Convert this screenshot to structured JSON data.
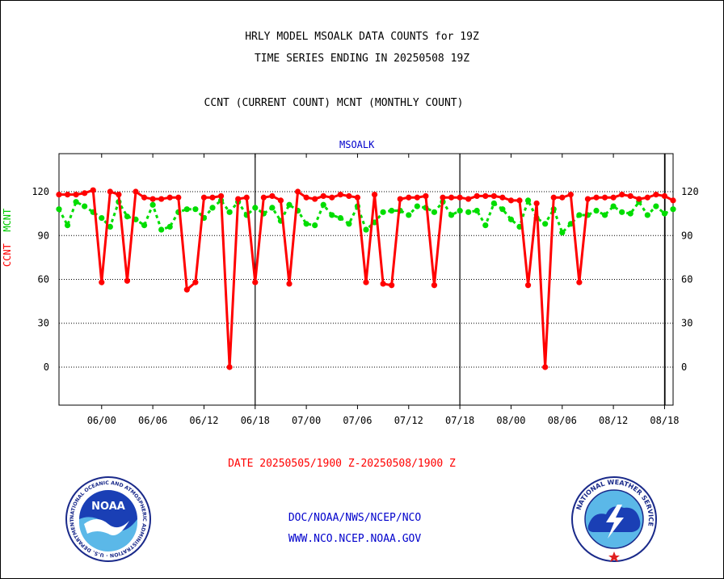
{
  "header": {
    "title_line1": "HRLY MODEL MSOALK DATA COUNTS for 19Z",
    "title_line2": "TIME SERIES ENDING IN 20250508 19Z",
    "title_line3": "CCNT (CURRENT COUNT) MCNT (MONTHLY COUNT)"
  },
  "ylabel_ccnt": "CCNT",
  "ylabel_mcnt": "MCNT",
  "date_label": "DATE 20250505/1900 Z-20250508/1900 Z",
  "footer": {
    "link1": "DOC/NOAA/NWS/NCEP/NCO",
    "link2": "WWW.NCO.NCEP.NOAA.GOV",
    "noaa_logo_text": "NOAA",
    "noaa_ring_text": "NATIONAL OCEANIC AND ATMOSPHERIC ADMINISTRATION · U.S. DEPARTMENT OF COMMERCE",
    "nws_ring_text": "NATIONAL WEATHER SERVICE"
  },
  "colors": {
    "ccnt": "#ff0000",
    "mcnt": "#00dd00",
    "station": "#0000cc",
    "links": "#0000cc"
  },
  "chart_data": {
    "type": "line",
    "station": "MSOALK",
    "x": [
      "05/19",
      "05/20",
      "05/21",
      "05/22",
      "05/23",
      "06/00",
      "06/01",
      "06/02",
      "06/03",
      "06/04",
      "06/05",
      "06/06",
      "06/07",
      "06/08",
      "06/09",
      "06/10",
      "06/11",
      "06/12",
      "06/13",
      "06/14",
      "06/15",
      "06/16",
      "06/17",
      "06/18",
      "06/19",
      "06/20",
      "06/21",
      "06/22",
      "06/23",
      "07/00",
      "07/01",
      "07/02",
      "07/03",
      "07/04",
      "07/05",
      "07/06",
      "07/07",
      "07/08",
      "07/09",
      "07/10",
      "07/11",
      "07/12",
      "07/13",
      "07/14",
      "07/15",
      "07/16",
      "07/17",
      "07/18",
      "07/19",
      "07/20",
      "07/21",
      "07/22",
      "07/23",
      "08/00",
      "08/01",
      "08/02",
      "08/03",
      "08/04",
      "08/05",
      "08/06",
      "08/07",
      "08/08",
      "08/09",
      "08/10",
      "08/11",
      "08/12",
      "08/13",
      "08/14",
      "08/15",
      "08/16",
      "08/17",
      "08/18",
      "08/19"
    ],
    "tick_labels": [
      "06/00",
      "06/06",
      "06/12",
      "06/18",
      "07/00",
      "07/06",
      "07/12",
      "07/18",
      "08/00",
      "08/06",
      "08/12",
      "08/18"
    ],
    "tick_positions": [
      "06/00",
      "06/06",
      "06/12",
      "06/18",
      "07/00",
      "07/06",
      "07/12",
      "07/18",
      "08/00",
      "08/06",
      "08/12",
      "08/18"
    ],
    "day_boundaries": [
      "06/18",
      "07/18",
      "08/18"
    ],
    "series": [
      {
        "name": "CCNT",
        "values": [
          118,
          118,
          118,
          119,
          121,
          58,
          120,
          118,
          59,
          120,
          116,
          115,
          115,
          116,
          116,
          53,
          58,
          116,
          116,
          117,
          0,
          115,
          116,
          58,
          116,
          117,
          114,
          57,
          120,
          116,
          115,
          117,
          116,
          118,
          117,
          116,
          58,
          118,
          57,
          56,
          115,
          116,
          116,
          117,
          56,
          116,
          116,
          116,
          115,
          117,
          117,
          117,
          116,
          114,
          114,
          56,
          112,
          0,
          116,
          116,
          118,
          58,
          115,
          116,
          116,
          116,
          118,
          117,
          115,
          116,
          118,
          117,
          114
        ]
      },
      {
        "name": "MCNT",
        "values": [
          108,
          97,
          113,
          110,
          106,
          102,
          96,
          113,
          103,
          101,
          97,
          111,
          94,
          96,
          106,
          108,
          108,
          102,
          109,
          114,
          106,
          113,
          104,
          109,
          105,
          109,
          100,
          111,
          107,
          98,
          97,
          111,
          104,
          102,
          98,
          110,
          94,
          99,
          106,
          107,
          107,
          104,
          110,
          109,
          106,
          113,
          104,
          107,
          106,
          107,
          97,
          112,
          108,
          101,
          96,
          114,
          102,
          98,
          108,
          92,
          98,
          104,
          104,
          107,
          104,
          110,
          106,
          105,
          113,
          104,
          110,
          105,
          108
        ]
      }
    ],
    "yticks": [
      0,
      30,
      60,
      90,
      120
    ],
    "ylim": [
      -26,
      146
    ],
    "grid": true
  }
}
